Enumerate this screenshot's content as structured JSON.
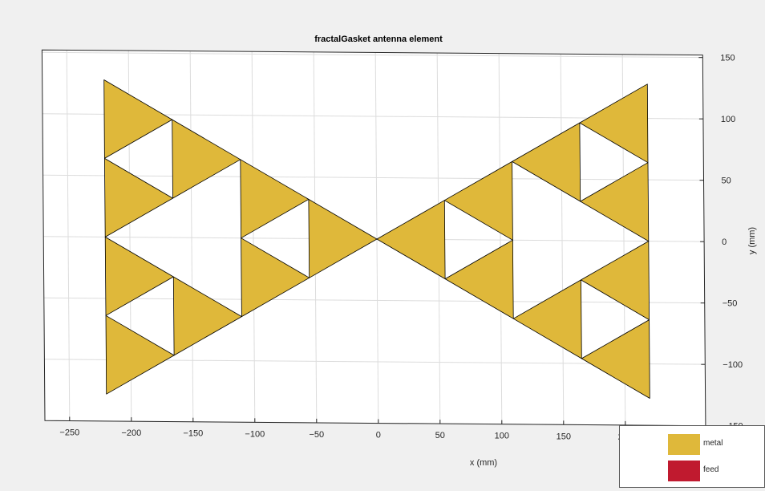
{
  "chart_data": {
    "type": "diagram",
    "title": "fractalGasket antenna element",
    "xlabel": "x (mm)",
    "ylabel": "y (mm)",
    "x_ticks": [
      -250,
      -200,
      -150,
      -100,
      -50,
      0,
      50,
      100,
      150,
      200
    ],
    "y_ticks": [
      150,
      100,
      50,
      0,
      -50,
      -100,
      -150
    ],
    "xlim": [
      -270,
      265
    ],
    "ylim": [
      -150,
      152
    ],
    "grid": true,
    "y_axis_location": "right",
    "legend_placement": "bottom-right",
    "colors": {
      "metal": "#dfb83a",
      "feed": "#c01a2f",
      "edge": "#000000",
      "grid": "#dcdcdc",
      "axes_bg": "#ffffff",
      "figure_bg": "#f0f0f0"
    },
    "metal_triangles": [
      [
        [
          -220,
          128
        ],
        [
          -165,
          96
        ],
        [
          -220,
          64
        ]
      ],
      [
        [
          -220,
          64
        ],
        [
          -165,
          32
        ],
        [
          -220,
          0
        ]
      ],
      [
        [
          -165,
          96
        ],
        [
          -110,
          64
        ],
        [
          -165,
          32
        ]
      ],
      [
        [
          -220,
          0
        ],
        [
          -165,
          -32
        ],
        [
          -220,
          -64
        ]
      ],
      [
        [
          -220,
          -64
        ],
        [
          -165,
          -96
        ],
        [
          -220,
          -128
        ]
      ],
      [
        [
          -165,
          -32
        ],
        [
          -110,
          -64
        ],
        [
          -165,
          -96
        ]
      ],
      [
        [
          -110,
          64
        ],
        [
          -55,
          32
        ],
        [
          -110,
          0
        ]
      ],
      [
        [
          -110,
          0
        ],
        [
          -55,
          -32
        ],
        [
          -110,
          -64
        ]
      ],
      [
        [
          -55,
          32
        ],
        [
          0,
          0
        ],
        [
          -55,
          -32
        ]
      ],
      [
        [
          220,
          128
        ],
        [
          165,
          96
        ],
        [
          220,
          64
        ]
      ],
      [
        [
          220,
          64
        ],
        [
          165,
          32
        ],
        [
          220,
          0
        ]
      ],
      [
        [
          165,
          96
        ],
        [
          110,
          64
        ],
        [
          165,
          32
        ]
      ],
      [
        [
          220,
          0
        ],
        [
          165,
          -32
        ],
        [
          220,
          -64
        ]
      ],
      [
        [
          220,
          -64
        ],
        [
          165,
          -96
        ],
        [
          220,
          -128
        ]
      ],
      [
        [
          165,
          -32
        ],
        [
          110,
          -64
        ],
        [
          165,
          -96
        ]
      ],
      [
        [
          110,
          64
        ],
        [
          55,
          32
        ],
        [
          110,
          0
        ]
      ],
      [
        [
          110,
          0
        ],
        [
          55,
          -32
        ],
        [
          110,
          -64
        ]
      ],
      [
        [
          55,
          32
        ],
        [
          0,
          0
        ],
        [
          55,
          -32
        ]
      ]
    ],
    "legend": [
      {
        "label": "metal",
        "color": "#dfb83a"
      },
      {
        "label": "feed",
        "color": "#c01a2f"
      }
    ]
  }
}
